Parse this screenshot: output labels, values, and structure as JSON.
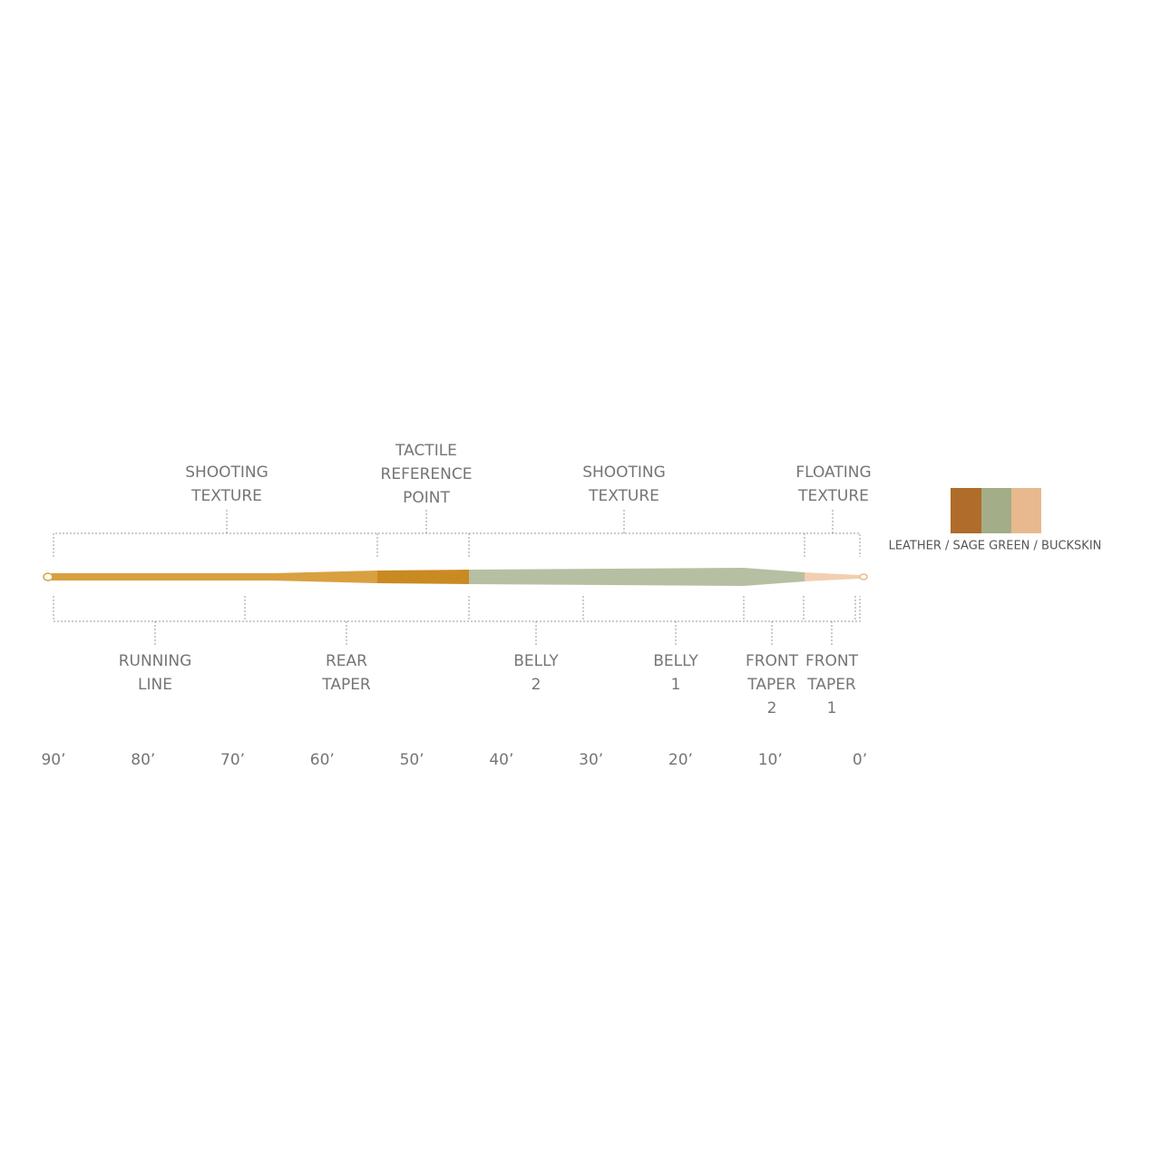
{
  "top_labels": [
    {
      "lines": [
        "SHOOTING",
        "TEXTURE"
      ]
    },
    {
      "lines": [
        "TACTILE",
        "REFERENCE",
        "POINT"
      ]
    },
    {
      "lines": [
        "SHOOTING",
        "TEXTURE"
      ]
    },
    {
      "lines": [
        "FLOATING",
        "TEXTURE"
      ]
    }
  ],
  "bottom_labels": [
    {
      "lines": [
        "RUNNING",
        "LINE"
      ]
    },
    {
      "lines": [
        "REAR",
        "TAPER"
      ]
    },
    {
      "lines": [
        "BELLY",
        "2"
      ]
    },
    {
      "lines": [
        "BELLY",
        "1"
      ]
    },
    {
      "lines": [
        "FRONT",
        "TAPER",
        "2"
      ]
    },
    {
      "lines": [
        "FRONT",
        "TAPER",
        "1"
      ]
    }
  ],
  "scale": [
    "90’",
    "80’",
    "70’",
    "60’",
    "50’",
    "40’",
    "30’",
    "20’",
    "10’",
    "0’"
  ],
  "legend": "LEATHER / SAGE GREEN / BUCKSKIN"
}
